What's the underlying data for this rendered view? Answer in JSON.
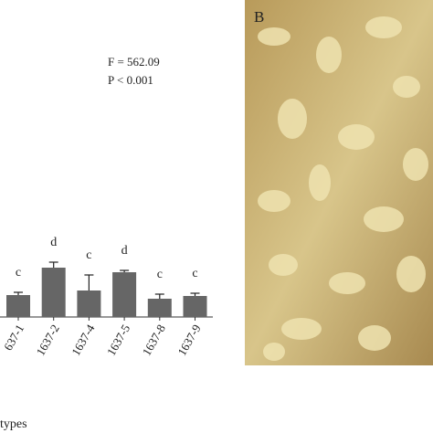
{
  "chart_data": {
    "type": "bar",
    "categories": [
      "637-1",
      "1637-2",
      "1637-4",
      "1637-5",
      "1637-8",
      "1637-9"
    ],
    "values": [
      24,
      54,
      29,
      49,
      20,
      23
    ],
    "errors": [
      3,
      6,
      17,
      2,
      5,
      3
    ],
    "letters": [
      "c",
      "d",
      "c",
      "d",
      "c",
      "c"
    ],
    "color": "#666666",
    "ylim": [
      0,
      100
    ],
    "x_label": "types",
    "stat_f": "F = 562.09",
    "stat_p": "P < 0.001"
  },
  "photo_label": "B"
}
